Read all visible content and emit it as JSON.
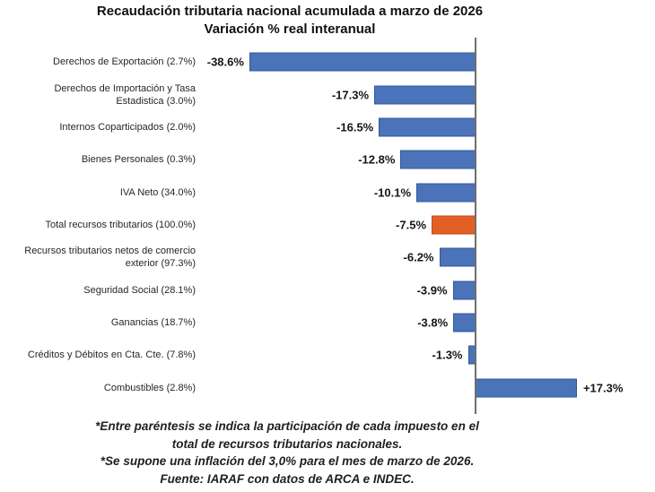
{
  "chart_data": {
    "type": "bar",
    "orientation": "horizontal",
    "title": "Recaudación tributaria nacional acumulada a marzo de 2026",
    "subtitle": "Variación % real interanual",
    "unit": "% real interanual",
    "categories": [
      "Derechos de Exportación (2.7%)",
      "Derechos de Importación y Tasa\nEstadistica (3.0%)",
      "Internos Coparticipados (2.0%)",
      "Bienes Personales (0.3%)",
      "IVA Neto (34.0%)",
      "Total recursos tributarios (100.0%)",
      "Recursos tributarios netos de comercio\nexterior (97.3%)",
      "Seguridad Social (28.1%)",
      "Ganancias (18.7%)",
      "Créditos y Débitos en Cta. Cte. (7.8%)",
      "Combustibles (2.8%)"
    ],
    "values": [
      -38.6,
      -17.3,
      -16.5,
      -12.8,
      -10.1,
      -7.5,
      -6.2,
      -3.9,
      -3.8,
      -1.3,
      17.3
    ],
    "value_labels": [
      "-38.6%",
      "-17.3%",
      "-16.5%",
      "-12.8%",
      "-10.1%",
      "-7.5%",
      "-6.2%",
      "-3.9%",
      "-3.8%",
      "-1.3%",
      "+17.3%"
    ],
    "highlight_index": 5,
    "xlim": [
      -46.5,
      30.5
    ],
    "grid": "off",
    "legend": "none",
    "axis": "vertical zero line",
    "colors": {
      "bar_fill": "#4A73BA",
      "bar_border": "#2F5894",
      "highlight_fill": "#E45F26",
      "highlight_border": "#BF4A12",
      "axis_line": "#6F6F6F",
      "title_text": "#111111",
      "label_text": "#262626",
      "value_text": "#161616"
    },
    "footnotes": [
      "*Entre paréntesis se indica la participación de cada impuesto en el",
      "total de recursos tributarios nacionales.",
      "*Se supone una inflación del 3,0% para el mes de marzo de 2026.",
      "Fuente: IARAF con datos de ARCA e INDEC."
    ]
  }
}
